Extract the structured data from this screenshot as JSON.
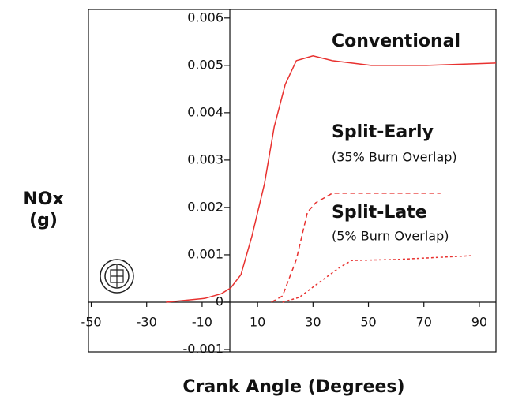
{
  "chart_data": {
    "type": "line",
    "ylabel": [
      "NOx",
      "(g)"
    ],
    "xlabel": "Crank Angle (Degrees)",
    "xlim": [
      -51,
      96
    ],
    "xticks": [
      -50,
      -30,
      -10,
      10,
      30,
      50,
      70,
      90
    ],
    "ylim": [
      -0.00105,
      0.00618
    ],
    "yticks": [
      -0.001,
      0,
      0.001,
      0.002,
      0.003,
      0.004,
      0.005,
      0.006
    ],
    "series": [
      {
        "name": "Conventional",
        "color": "#e8312f",
        "style": "solid",
        "x": [
          -23,
          -9,
          -3,
          0.3,
          4,
          8,
          12.5,
          16,
          20,
          24,
          30,
          37,
          51,
          71,
          96
        ],
        "values": [
          0,
          8e-05,
          0.00018,
          0.0003,
          0.00058,
          0.0014,
          0.0025,
          0.0037,
          0.0046,
          0.0051,
          0.0052,
          0.0051,
          0.005,
          0.005,
          0.00505
        ]
      },
      {
        "name": "Split-Early",
        "color": "#e8312f",
        "style": "dashed",
        "x": [
          15,
          19,
          24,
          28,
          31,
          37,
          76
        ],
        "values": [
          0,
          0.00013,
          0.0009,
          0.0019,
          0.0021,
          0.0023,
          0.0023
        ]
      },
      {
        "name": "Split-Late",
        "color": "#e8312f",
        "style": "dotted",
        "x": [
          19,
          25,
          33,
          40,
          44,
          60,
          87
        ],
        "values": [
          0,
          0.0001,
          0.00045,
          0.00075,
          0.00088,
          0.0009,
          0.00098
        ]
      }
    ],
    "annotations": [
      "(35% Burn Overlap)",
      "(5% Burn Overlap)"
    ]
  }
}
